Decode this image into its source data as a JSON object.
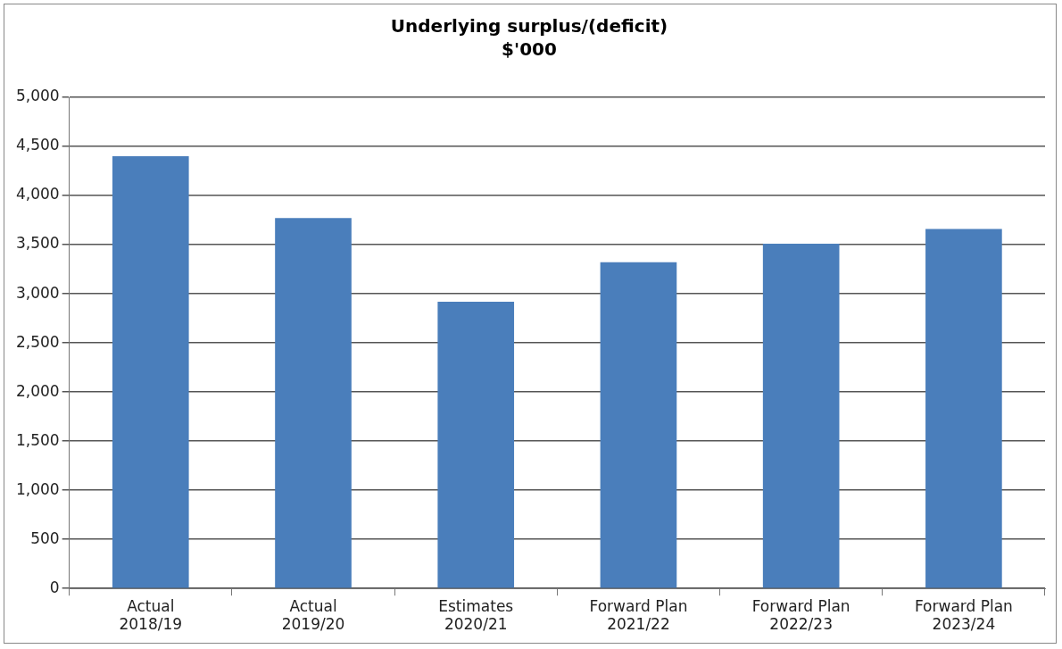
{
  "chart_data": {
    "type": "bar",
    "title": "Underlying surplus/(deficit)",
    "subtitle": "$'000",
    "categories": [
      "Actual\n2018/19",
      "Actual\n2019/20",
      "Estimates\n2020/21",
      "Forward Plan\n2021/22",
      "Forward Plan\n2022/23",
      "Forward Plan\n2023/24"
    ],
    "values": [
      4400,
      3770,
      2920,
      3320,
      3510,
      3660
    ],
    "color": "#4a7ebb",
    "ylim": [
      0,
      5000
    ],
    "yticks": [
      0,
      500,
      {
        "value": 1000,
        "label": "1,000"
      },
      {
        "value": 1500,
        "label": "1,500"
      },
      {
        "value": 2000,
        "label": "2,000"
      },
      {
        "value": 2500,
        "label": "2,500"
      },
      {
        "value": 3000,
        "label": "3,000"
      },
      {
        "value": 3500,
        "label": "3,500"
      },
      {
        "value": 4000,
        "label": "4,000"
      },
      {
        "value": 4500,
        "label": "4,500"
      },
      {
        "value": 5000,
        "label": "5,000"
      }
    ],
    "grid": "y",
    "legend": false
  }
}
